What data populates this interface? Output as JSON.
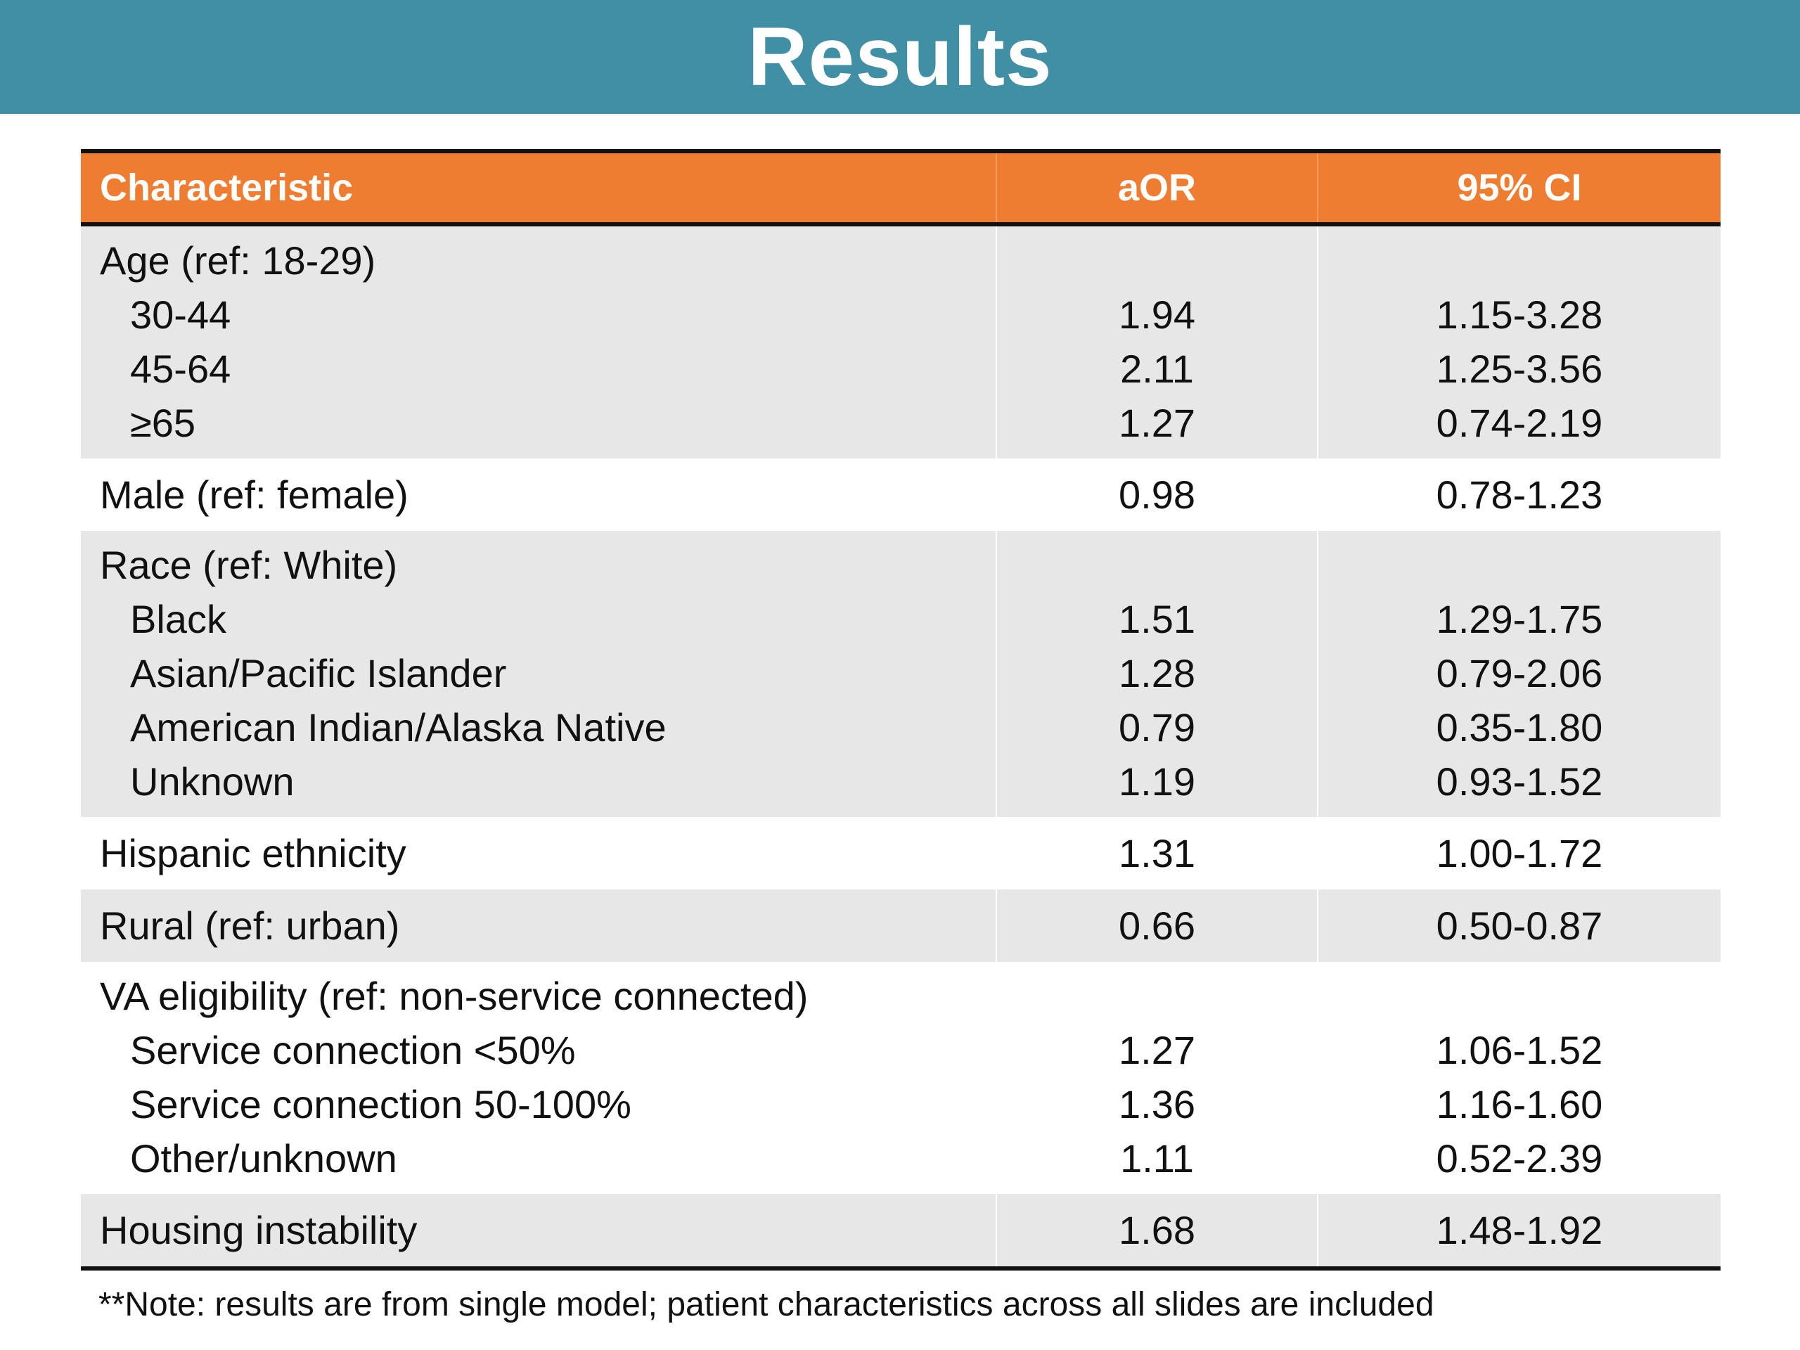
{
  "title": "Results",
  "table": {
    "headers": [
      "Characteristic",
      "aOR",
      "95% CI"
    ],
    "groups": [
      {
        "shade": true,
        "rows": [
          {
            "label": "Age (ref: 18-29)",
            "aor": "",
            "ci": "",
            "sub": false
          },
          {
            "label": "30-44",
            "aor": "1.94",
            "ci": "1.15-3.28",
            "sub": true
          },
          {
            "label": "45-64",
            "aor": "2.11",
            "ci": "1.25-3.56",
            "sub": true
          },
          {
            "label": "≥65",
            "aor": "1.27",
            "ci": "0.74-2.19",
            "sub": true
          }
        ]
      },
      {
        "shade": false,
        "rows": [
          {
            "label": "Male (ref: female)",
            "aor": "0.98",
            "ci": "0.78-1.23",
            "sub": false
          }
        ]
      },
      {
        "shade": true,
        "rows": [
          {
            "label": "Race (ref: White)",
            "aor": "",
            "ci": "",
            "sub": false
          },
          {
            "label": "Black",
            "aor": "1.51",
            "ci": "1.29-1.75",
            "sub": true
          },
          {
            "label": "Asian/Pacific Islander",
            "aor": "1.28",
            "ci": "0.79-2.06",
            "sub": true
          },
          {
            "label": "American Indian/Alaska Native",
            "aor": "0.79",
            "ci": "0.35-1.80",
            "sub": true
          },
          {
            "label": "Unknown",
            "aor": "1.19",
            "ci": "0.93-1.52",
            "sub": true
          }
        ]
      },
      {
        "shade": false,
        "rows": [
          {
            "label": "Hispanic ethnicity",
            "aor": "1.31",
            "ci": "1.00-1.72",
            "sub": false
          }
        ]
      },
      {
        "shade": true,
        "rows": [
          {
            "label": "Rural (ref: urban)",
            "aor": "0.66",
            "ci": "0.50-0.87",
            "sub": false
          }
        ]
      },
      {
        "shade": false,
        "rows": [
          {
            "label": "VA eligibility (ref: non-service connected)",
            "aor": "",
            "ci": "",
            "sub": false
          },
          {
            "label": "Service connection <50%",
            "aor": "1.27",
            "ci": "1.06-1.52",
            "sub": true
          },
          {
            "label": "Service connection 50-100%",
            "aor": "1.36",
            "ci": "1.16-1.60",
            "sub": true
          },
          {
            "label": "Other/unknown",
            "aor": "1.11",
            "ci": "0.52-2.39",
            "sub": true
          }
        ]
      },
      {
        "shade": true,
        "rows": [
          {
            "label": "Housing instability",
            "aor": "1.68",
            "ci": "1.48-1.92",
            "sub": false
          }
        ]
      }
    ]
  },
  "note": "**Note: results are from single model; patient characteristics across all slides are included",
  "colors": {
    "title_bar": "#418fa5",
    "header_row": "#ee7d31",
    "shade_row": "#e7e7e7"
  }
}
